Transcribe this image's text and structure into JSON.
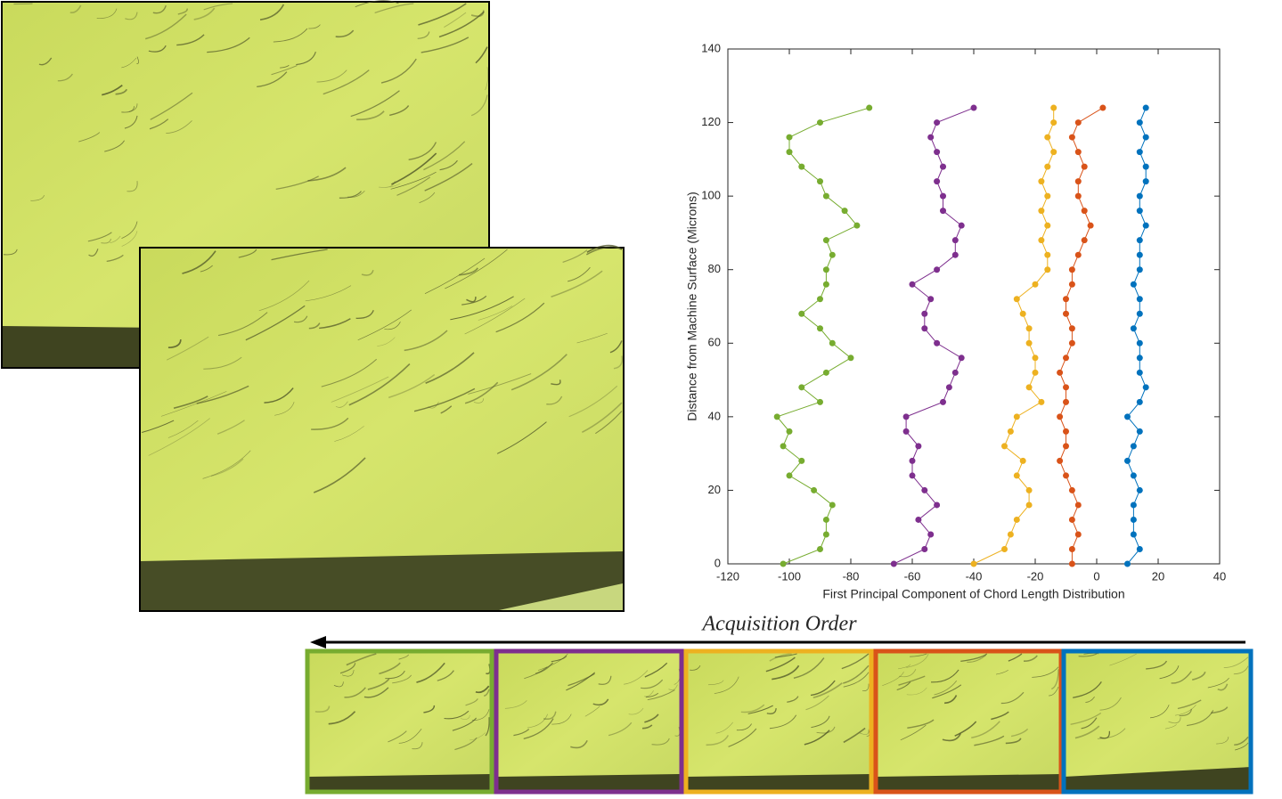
{
  "chart_data": {
    "type": "line",
    "xlabel": "First Principal Component of Chord Length Distribution",
    "ylabel": "Distance from Machine Surface (Microns)",
    "xlim": [
      -120,
      40
    ],
    "xticks": [
      -120,
      -100,
      -80,
      -60,
      -40,
      -20,
      0,
      20,
      40
    ],
    "ylim": [
      0,
      140
    ],
    "yticks": [
      0,
      20,
      40,
      60,
      80,
      100,
      120,
      140
    ],
    "series": [
      {
        "color": "#77ac30",
        "x": [
          -102,
          -90,
          -88,
          -88,
          -86,
          -92,
          -100,
          -96,
          -102,
          -100,
          -104,
          -90,
          -96,
          -88,
          -80,
          -86,
          -90,
          -96,
          -90,
          -88,
          -88,
          -86,
          -88,
          -78,
          -82,
          -88,
          -90,
          -96,
          -100,
          -100,
          -90,
          -74
        ],
        "values": [
          0,
          4,
          8,
          12,
          16,
          20,
          24,
          28,
          32,
          36,
          40,
          44,
          48,
          52,
          56,
          60,
          64,
          68,
          72,
          76,
          80,
          84,
          88,
          92,
          96,
          100,
          104,
          108,
          112,
          116,
          120,
          124
        ]
      },
      {
        "color": "#7e2f8e",
        "x": [
          -66,
          -56,
          -54,
          -58,
          -52,
          -56,
          -60,
          -60,
          -58,
          -62,
          -62,
          -50,
          -48,
          -46,
          -44,
          -52,
          -56,
          -56,
          -54,
          -60,
          -52,
          -46,
          -46,
          -44,
          -50,
          -50,
          -52,
          -50,
          -52,
          -54,
          -52,
          -40
        ],
        "values": [
          0,
          4,
          8,
          12,
          16,
          20,
          24,
          28,
          32,
          36,
          40,
          44,
          48,
          52,
          56,
          60,
          64,
          68,
          72,
          76,
          80,
          84,
          88,
          92,
          96,
          100,
          104,
          108,
          112,
          116,
          120,
          124
        ]
      },
      {
        "color": "#edb120",
        "x": [
          -40,
          -30,
          -28,
          -26,
          -22,
          -22,
          -26,
          -24,
          -30,
          -28,
          -26,
          -18,
          -22,
          -20,
          -20,
          -22,
          -22,
          -24,
          -26,
          -20,
          -16,
          -16,
          -18,
          -16,
          -18,
          -16,
          -18,
          -16,
          -14,
          -16,
          -14,
          -14
        ],
        "values": [
          0,
          4,
          8,
          12,
          16,
          20,
          24,
          28,
          32,
          36,
          40,
          44,
          48,
          52,
          56,
          60,
          64,
          68,
          72,
          76,
          80,
          84,
          88,
          92,
          96,
          100,
          104,
          108,
          112,
          116,
          120,
          124
        ]
      },
      {
        "color": "#d95319",
        "x": [
          -8,
          -8,
          -6,
          -8,
          -6,
          -8,
          -10,
          -12,
          -10,
          -10,
          -12,
          -10,
          -10,
          -12,
          -10,
          -8,
          -8,
          -10,
          -10,
          -8,
          -8,
          -6,
          -4,
          -2,
          -4,
          -6,
          -6,
          -4,
          -6,
          -8,
          -6,
          2
        ],
        "values": [
          0,
          4,
          8,
          12,
          16,
          20,
          24,
          28,
          32,
          36,
          40,
          44,
          48,
          52,
          56,
          60,
          64,
          68,
          72,
          76,
          80,
          84,
          88,
          92,
          96,
          100,
          104,
          108,
          112,
          116,
          120,
          124
        ]
      },
      {
        "color": "#0072bd",
        "x": [
          10,
          14,
          12,
          12,
          12,
          14,
          12,
          10,
          12,
          14,
          10,
          14,
          16,
          14,
          14,
          14,
          12,
          14,
          14,
          12,
          14,
          14,
          14,
          16,
          14,
          14,
          16,
          16,
          14,
          16,
          14,
          16
        ],
        "values": [
          0,
          4,
          8,
          12,
          16,
          20,
          24,
          28,
          32,
          36,
          40,
          44,
          48,
          52,
          56,
          60,
          64,
          68,
          72,
          76,
          80,
          84,
          88,
          92,
          96,
          100,
          104,
          108,
          112,
          116,
          120,
          124
        ]
      }
    ]
  },
  "figure": {
    "arrow_label": "Acquisition Order"
  }
}
